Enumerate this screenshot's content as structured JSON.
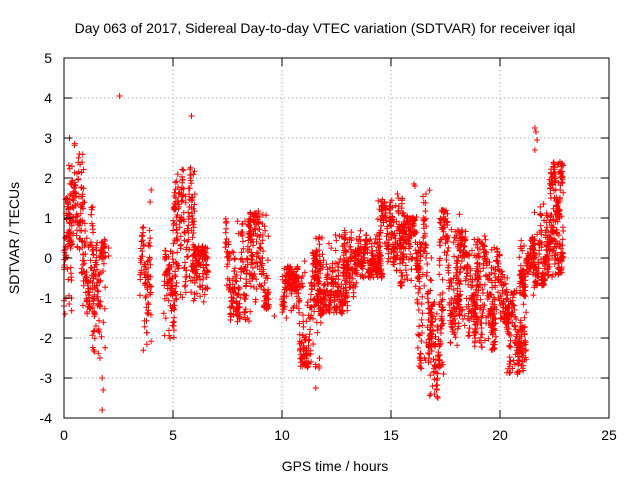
{
  "chart_data": {
    "type": "scatter",
    "title": "Day 063 of 2017, Sidereal Day-to-day VTEC variation (SDTVAR) for receiver iqal",
    "xlabel": "GPS time / hours",
    "ylabel": "SDTVAR / TECUs",
    "xlim": [
      0,
      25
    ],
    "ylim": [
      -4,
      5
    ],
    "xticks": [
      0,
      5,
      10,
      15,
      20,
      25
    ],
    "yticks": [
      -4,
      -3,
      -2,
      -1,
      0,
      1,
      2,
      3,
      4,
      5
    ],
    "grid": true,
    "marker": "+",
    "marker_color": "#ff0000",
    "series": [
      {
        "name": "SDTVAR",
        "envelopes": [
          {
            "x0": 0.0,
            "x1": 0.35,
            "y0": -1.4,
            "y1": 1.5
          },
          {
            "x0": 0.2,
            "x1": 0.9,
            "y0": 0.2,
            "y1": 3.0
          },
          {
            "x0": 0.8,
            "x1": 1.4,
            "y0": -1.4,
            "y1": 1.8
          },
          {
            "x0": 1.3,
            "x1": 1.9,
            "y0": -2.8,
            "y1": 0.5
          },
          {
            "x0": 3.5,
            "x1": 4.0,
            "y0": -2.4,
            "y1": 0.8
          },
          {
            "x0": 4.6,
            "x1": 5.2,
            "y0": -2.1,
            "y1": 0.2
          },
          {
            "x0": 5.0,
            "x1": 6.0,
            "y0": -1.0,
            "y1": 2.3
          },
          {
            "x0": 5.9,
            "x1": 6.6,
            "y0": -1.3,
            "y1": 0.3
          },
          {
            "x0": 7.4,
            "x1": 8.6,
            "y0": -1.6,
            "y1": 1.0
          },
          {
            "x0": 8.5,
            "x1": 9.4,
            "y0": -1.3,
            "y1": 1.2
          },
          {
            "x0": 10.0,
            "x1": 10.8,
            "y0": -1.4,
            "y1": -0.2
          },
          {
            "x0": 10.8,
            "x1": 11.8,
            "y0": -2.8,
            "y1": 0.2
          },
          {
            "x0": 11.5,
            "x1": 13.0,
            "y0": -1.4,
            "y1": 0.6
          },
          {
            "x0": 12.8,
            "x1": 13.6,
            "y0": -1.0,
            "y1": 0.7
          },
          {
            "x0": 13.6,
            "x1": 14.6,
            "y0": -0.5,
            "y1": 0.6
          },
          {
            "x0": 14.4,
            "x1": 15.6,
            "y0": -0.4,
            "y1": 1.5
          },
          {
            "x0": 15.4,
            "x1": 16.4,
            "y0": -0.8,
            "y1": 1.1
          },
          {
            "x0": 16.2,
            "x1": 16.9,
            "y0": -2.8,
            "y1": 1.8
          },
          {
            "x0": 16.7,
            "x1": 17.4,
            "y0": -3.5,
            "y1": -1.0
          },
          {
            "x0": 17.2,
            "x1": 18.2,
            "y0": -2.2,
            "y1": 1.2
          },
          {
            "x0": 18.0,
            "x1": 19.0,
            "y0": -2.0,
            "y1": 0.7
          },
          {
            "x0": 18.8,
            "x1": 19.8,
            "y0": -2.3,
            "y1": 0.5
          },
          {
            "x0": 19.6,
            "x1": 20.4,
            "y0": -1.7,
            "y1": 0.3
          },
          {
            "x0": 20.3,
            "x1": 21.2,
            "y0": -2.9,
            "y1": -0.8
          },
          {
            "x0": 20.9,
            "x1": 21.6,
            "y0": -1.0,
            "y1": 0.5
          },
          {
            "x0": 21.5,
            "x1": 22.2,
            "y0": -0.7,
            "y1": 1.3
          },
          {
            "x0": 22.1,
            "x1": 22.9,
            "y0": -0.5,
            "y1": 1.2
          },
          {
            "x0": 22.3,
            "x1": 22.9,
            "y0": 1.0,
            "y1": 2.4
          }
        ],
        "points": [
          [
            2.55,
            4.05
          ],
          [
            5.85,
            3.55
          ],
          [
            21.6,
            3.25
          ],
          [
            21.65,
            3.15
          ],
          [
            21.7,
            2.95
          ],
          [
            21.6,
            2.7
          ],
          [
            22.75,
            2.4
          ],
          [
            0.7,
            2.6
          ],
          [
            1.8,
            -3.3
          ],
          [
            1.75,
            -3.8
          ],
          [
            1.75,
            -3.0
          ],
          [
            1.65,
            -2.5
          ],
          [
            11.55,
            -3.25
          ],
          [
            11.7,
            -2.7
          ],
          [
            17.15,
            -3.5
          ],
          [
            17.1,
            -3.3
          ],
          [
            17.0,
            -3.4
          ],
          [
            4.0,
            1.7
          ],
          [
            3.95,
            1.4
          ],
          [
            2.05,
            0.25
          ],
          [
            2.05,
            0.05
          ],
          [
            0.25,
            3.0
          ],
          [
            0.0,
            -1.2
          ],
          [
            0.05,
            -1.4
          ],
          [
            9.65,
            -1.45
          ],
          [
            10.2,
            -1.5
          ],
          [
            16.05,
            1.85
          ],
          [
            16.1,
            1.8
          ],
          [
            15.3,
            1.6
          ],
          [
            19.3,
            0.55
          ],
          [
            20.05,
            -1.5
          ],
          [
            20.8,
            -2.9
          ],
          [
            20.9,
            -2.85
          ],
          [
            22.8,
            -0.3
          ],
          [
            22.0,
            1.35
          ]
        ]
      }
    ]
  }
}
